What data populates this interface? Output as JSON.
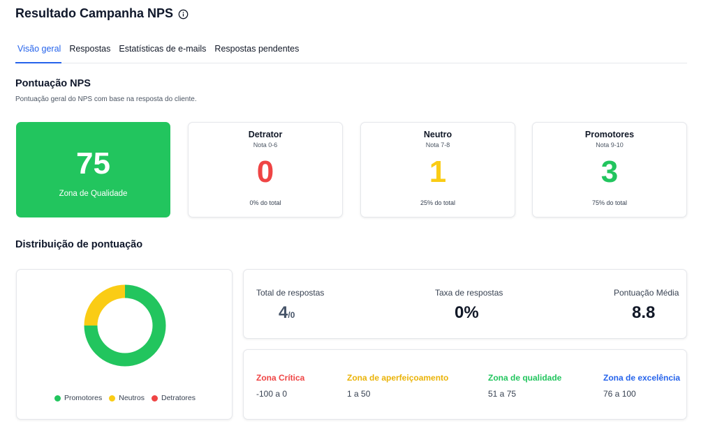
{
  "header": {
    "title": "Resultado Campanha NPS",
    "info_icon": "info-circle-icon"
  },
  "tabs": [
    {
      "label": "Visão geral",
      "active": true
    },
    {
      "label": "Respostas",
      "active": false
    },
    {
      "label": "Estatísticas de e-mails",
      "active": false
    },
    {
      "label": "Respostas pendentes",
      "active": false
    }
  ],
  "nps": {
    "title": "Pontuação NPS",
    "subtitle": "Pontuação geral do NPS com base na resposta do cliente.",
    "score": "75",
    "zone": "Zona de Qualidade",
    "score_color": "#22c55e",
    "categories": [
      {
        "name": "Detrator",
        "range": "Nota 0-6",
        "count": "0",
        "pct": "0% do total",
        "color": "#ef4444"
      },
      {
        "name": "Neutro",
        "range": "Nota 7-8",
        "count": "1",
        "pct": "25% do total",
        "color": "#facc15"
      },
      {
        "name": "Promotores",
        "range": "Nota 9-10",
        "count": "3",
        "pct": "75% do total",
        "color": "#22c55e"
      }
    ]
  },
  "distribution": {
    "title": "Distribuição de pontuação",
    "chart_data": {
      "type": "pie",
      "categories": [
        "Promotores",
        "Neutros",
        "Detratores"
      ],
      "values": [
        3,
        1,
        0
      ],
      "colors": [
        "#22c55e",
        "#facc15",
        "#ef4444"
      ],
      "donut": true,
      "legend": "bottom"
    },
    "legend": [
      {
        "label": "Promotores",
        "color": "#22c55e"
      },
      {
        "label": "Neutros",
        "color": "#facc15"
      },
      {
        "label": "Detratores",
        "color": "#ef4444"
      }
    ]
  },
  "stats": {
    "total_label": "Total de respostas",
    "total_value": "4",
    "total_suffix": "/0",
    "rate_label": "Taxa de respostas",
    "rate_value": "0%",
    "avg_label": "Pontuação Média",
    "avg_value": "8.8"
  },
  "zones": [
    {
      "name": "Zona Crítica",
      "range": "-100 a 0",
      "color": "#ef4444"
    },
    {
      "name": "Zona de aperfeiçoamento",
      "range": "1 a 50",
      "color": "#eab308"
    },
    {
      "name": "Zona de qualidade",
      "range": "51 a 75",
      "color": "#22c55e"
    },
    {
      "name": "Zona de excelência",
      "range": "76 a 100",
      "color": "#2563eb"
    }
  ]
}
